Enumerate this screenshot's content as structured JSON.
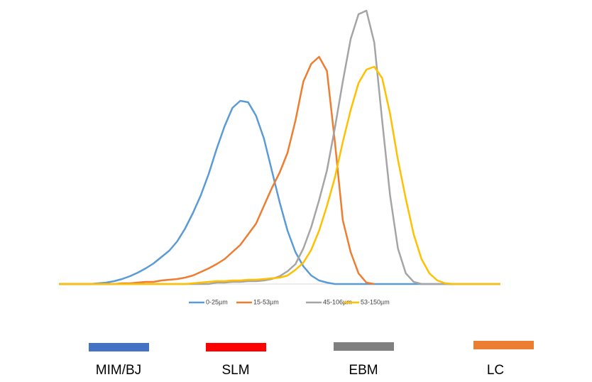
{
  "chart_data": {
    "type": "line",
    "categories": [
      null,
      null,
      null,
      null,
      null,
      null,
      null,
      null,
      null,
      null,
      null,
      null,
      null,
      null,
      null,
      null,
      null,
      null,
      null,
      null,
      null,
      null,
      null,
      null,
      null,
      null,
      null,
      null,
      null,
      null,
      null,
      null,
      null,
      null,
      null,
      null,
      null,
      null,
      null,
      null,
      null,
      null,
      null,
      null,
      null,
      null,
      null,
      null,
      null,
      null,
      null,
      null,
      null,
      null,
      null,
      null,
      null
    ],
    "ylim": [
      0,
      400
    ],
    "legend": "bottom",
    "series": [
      {
        "name": "0-25µm",
        "color": "#5b9bd5",
        "values": [
          0,
          0,
          0,
          0,
          0,
          1,
          2,
          4,
          7,
          11,
          16,
          22,
          29,
          38,
          47,
          60,
          78,
          100,
          125,
          155,
          190,
          222,
          248,
          258,
          256,
          237,
          205,
          160,
          115,
          75,
          45,
          25,
          12,
          5,
          2,
          0,
          0,
          0,
          0,
          0,
          0,
          0,
          0,
          0,
          0,
          0,
          0,
          0,
          0,
          0,
          0,
          0,
          0,
          0,
          0,
          0,
          0
        ]
      },
      {
        "name": "15-53µm",
        "color": "#ed7d31",
        "values": [
          0,
          0,
          0,
          0,
          0,
          0,
          0,
          0,
          1,
          1,
          2,
          3,
          3,
          5,
          6,
          7,
          9,
          12,
          17,
          22,
          28,
          35,
          45,
          55,
          70,
          85,
          110,
          135,
          157,
          185,
          230,
          285,
          310,
          320,
          300,
          200,
          90,
          45,
          15,
          2,
          0,
          null,
          null,
          null,
          null,
          null,
          null,
          null,
          null,
          null,
          null,
          null,
          null,
          null,
          null,
          null,
          null
        ]
      },
      {
        "name": "45-106µm",
        "color": "#a5a5a5",
        "values": [
          0,
          0,
          0,
          0,
          0,
          0,
          0,
          0,
          0,
          0,
          0,
          0,
          0,
          0,
          0,
          0,
          0,
          0,
          0,
          0,
          2,
          2,
          3,
          3,
          4,
          4,
          5,
          7,
          11,
          18,
          28,
          50,
          80,
          118,
          160,
          220,
          285,
          345,
          380,
          385,
          340,
          230,
          125,
          50,
          15,
          3,
          0,
          0,
          0,
          0,
          0,
          0,
          0,
          0,
          0,
          0,
          0
        ]
      },
      {
        "name": "53-150µm",
        "color": "#ffc000",
        "values": [
          0,
          0,
          0,
          0,
          0,
          0,
          0,
          0,
          0,
          0,
          0,
          0,
          0,
          0,
          0,
          0,
          0,
          1,
          2,
          3,
          4,
          4,
          5,
          5,
          6,
          6,
          7,
          8,
          9,
          12,
          20,
          30,
          48,
          75,
          110,
          150,
          200,
          245,
          283,
          302,
          306,
          290,
          240,
          175,
          120,
          70,
          35,
          15,
          5,
          1,
          0,
          0,
          0,
          0,
          0,
          0,
          0
        ]
      }
    ]
  },
  "processes": [
    {
      "label": "MIM/BJ",
      "color": "#4472c4"
    },
    {
      "label": "SLM",
      "color": "#ff0000"
    },
    {
      "label": "EBM",
      "color": "#7f7f7f"
    },
    {
      "label": "LC",
      "color": "#ed7d31"
    }
  ]
}
